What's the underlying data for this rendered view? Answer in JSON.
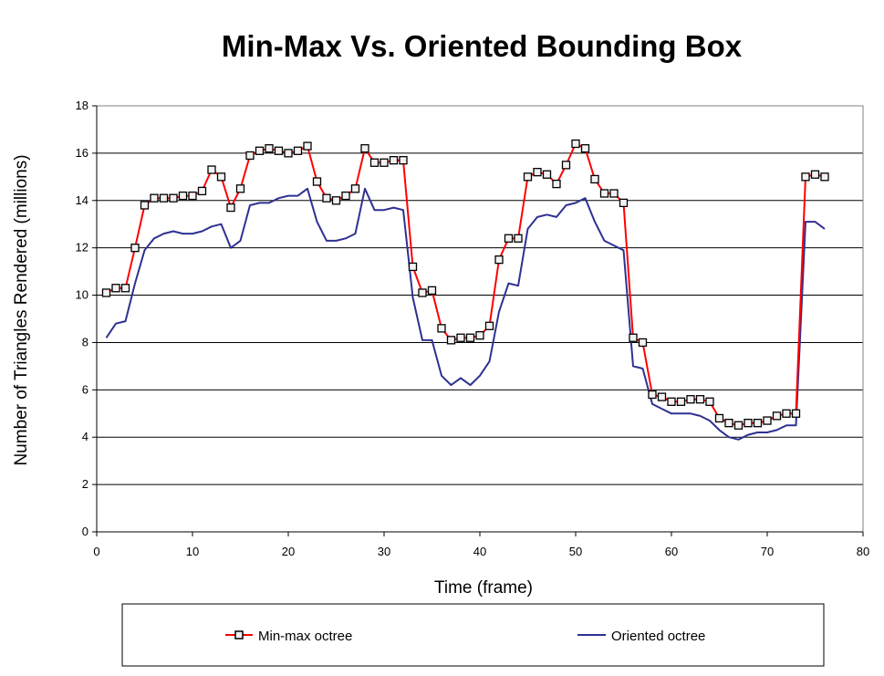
{
  "chart_data": {
    "type": "line",
    "title": "Min-Max Vs. Oriented Bounding Box",
    "xlabel": "Time (frame)",
    "ylabel": "Number of Triangles Rendered (millions)",
    "xlim": [
      0,
      80
    ],
    "ylim": [
      0,
      18
    ],
    "xticks": [
      0,
      10,
      20,
      30,
      40,
      50,
      60,
      70,
      80
    ],
    "yticks": [
      0,
      2,
      4,
      6,
      8,
      10,
      12,
      14,
      16,
      18
    ],
    "grid": "horizontal",
    "legend_position": "bottom",
    "series": [
      {
        "name": "Min-max octree",
        "color": "#ff0000",
        "marker": "square",
        "x": [
          1,
          2,
          3,
          4,
          5,
          6,
          7,
          8,
          9,
          10,
          11,
          12,
          13,
          14,
          15,
          16,
          17,
          18,
          19,
          20,
          21,
          22,
          23,
          24,
          25,
          26,
          27,
          28,
          29,
          30,
          31,
          32,
          33,
          34,
          35,
          36,
          37,
          38,
          39,
          40,
          41,
          42,
          43,
          44,
          45,
          46,
          47,
          48,
          49,
          50,
          51,
          52,
          53,
          54,
          55,
          56,
          57,
          58,
          59,
          60,
          61,
          62,
          63,
          64,
          65,
          66,
          67,
          68,
          69,
          70,
          71,
          72,
          73,
          74,
          75,
          76
        ],
        "y": [
          10.1,
          10.3,
          10.3,
          12.0,
          13.8,
          14.1,
          14.1,
          14.1,
          14.2,
          14.2,
          14.4,
          15.3,
          15.0,
          13.7,
          14.5,
          15.9,
          16.1,
          16.2,
          16.1,
          16.0,
          16.1,
          16.3,
          14.8,
          14.1,
          14.0,
          14.2,
          14.5,
          16.2,
          15.6,
          15.6,
          15.7,
          15.7,
          11.2,
          10.1,
          10.2,
          8.6,
          8.1,
          8.2,
          8.2,
          8.3,
          8.7,
          11.5,
          12.4,
          12.4,
          15.0,
          15.2,
          15.1,
          14.7,
          15.5,
          16.4,
          16.2,
          14.9,
          14.3,
          14.3,
          13.9,
          8.2,
          8.0,
          5.8,
          5.7,
          5.5,
          5.5,
          5.6,
          5.6,
          5.5,
          4.8,
          4.6,
          4.5,
          4.6,
          4.6,
          4.7,
          4.9,
          5.0,
          5.0,
          15.0,
          15.1,
          15.0
        ]
      },
      {
        "name": "Oriented octree",
        "color": "#2e3192",
        "marker": "none",
        "x": [
          1,
          2,
          3,
          4,
          5,
          6,
          7,
          8,
          9,
          10,
          11,
          12,
          13,
          14,
          15,
          16,
          17,
          18,
          19,
          20,
          21,
          22,
          23,
          24,
          25,
          26,
          27,
          28,
          29,
          30,
          31,
          32,
          33,
          34,
          35,
          36,
          37,
          38,
          39,
          40,
          41,
          42,
          43,
          44,
          45,
          46,
          47,
          48,
          49,
          50,
          51,
          52,
          53,
          54,
          55,
          56,
          57,
          58,
          59,
          60,
          61,
          62,
          63,
          64,
          65,
          66,
          67,
          68,
          69,
          70,
          71,
          72,
          73,
          74,
          75,
          76
        ],
        "y": [
          8.2,
          8.8,
          8.9,
          10.5,
          11.9,
          12.4,
          12.6,
          12.7,
          12.6,
          12.6,
          12.7,
          12.9,
          13.0,
          12.0,
          12.3,
          13.8,
          13.9,
          13.9,
          14.1,
          14.2,
          14.2,
          14.5,
          13.1,
          12.3,
          12.3,
          12.4,
          12.6,
          14.5,
          13.6,
          13.6,
          13.7,
          13.6,
          9.9,
          8.1,
          8.1,
          6.6,
          6.2,
          6.5,
          6.2,
          6.6,
          7.2,
          9.3,
          10.5,
          10.4,
          12.8,
          13.3,
          13.4,
          13.3,
          13.8,
          13.9,
          14.1,
          13.1,
          12.3,
          12.1,
          11.9,
          7.0,
          6.9,
          5.4,
          5.2,
          5.0,
          5.0,
          5.0,
          4.9,
          4.7,
          4.3,
          4.0,
          3.9,
          4.1,
          4.2,
          4.2,
          4.3,
          4.5,
          4.5,
          13.1,
          13.1,
          12.8
        ]
      }
    ]
  }
}
